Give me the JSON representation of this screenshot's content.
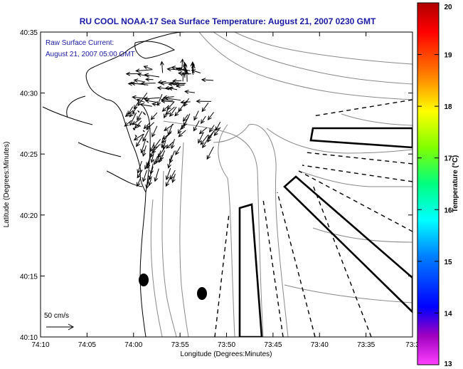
{
  "title": "RU COOL  NOAA-17  Sea Surface Temperature:  August 21, 2007 0230 GMT",
  "annotation": {
    "line1": "Raw Surface Current:",
    "line2": "August 21, 2007 05:00 GMT"
  },
  "scale_label": "50 cm/s",
  "x_axis": {
    "label": "Longitude (Degrees:Minutes)",
    "ticks": [
      "74:10",
      "74:05",
      "74:00",
      "73:55",
      "73:50",
      "73:45",
      "73:40",
      "73:35",
      "73:3"
    ]
  },
  "y_axis": {
    "label": "Latitude (Degrees:Minutes)",
    "ticks": [
      "40:35",
      "40:30",
      "40:25",
      "40:20",
      "40:15",
      "40:10"
    ]
  },
  "colorbar": {
    "label": "Temperature (°C)",
    "ticks": [
      "20",
      "19",
      "18",
      "17",
      "16",
      "15",
      "14",
      "13"
    ],
    "colors": [
      "#b00000",
      "#ff0000",
      "#ff8000",
      "#ffff00",
      "#80ff00",
      "#00ff80",
      "#00ffff",
      "#0080ff",
      "#0000ff",
      "#a000c0",
      "#ff40ff"
    ]
  },
  "map_colors": {
    "land": "#ffffff",
    "coast": "#000000",
    "contour": "#8a8a8a",
    "vector": "#000000"
  }
}
